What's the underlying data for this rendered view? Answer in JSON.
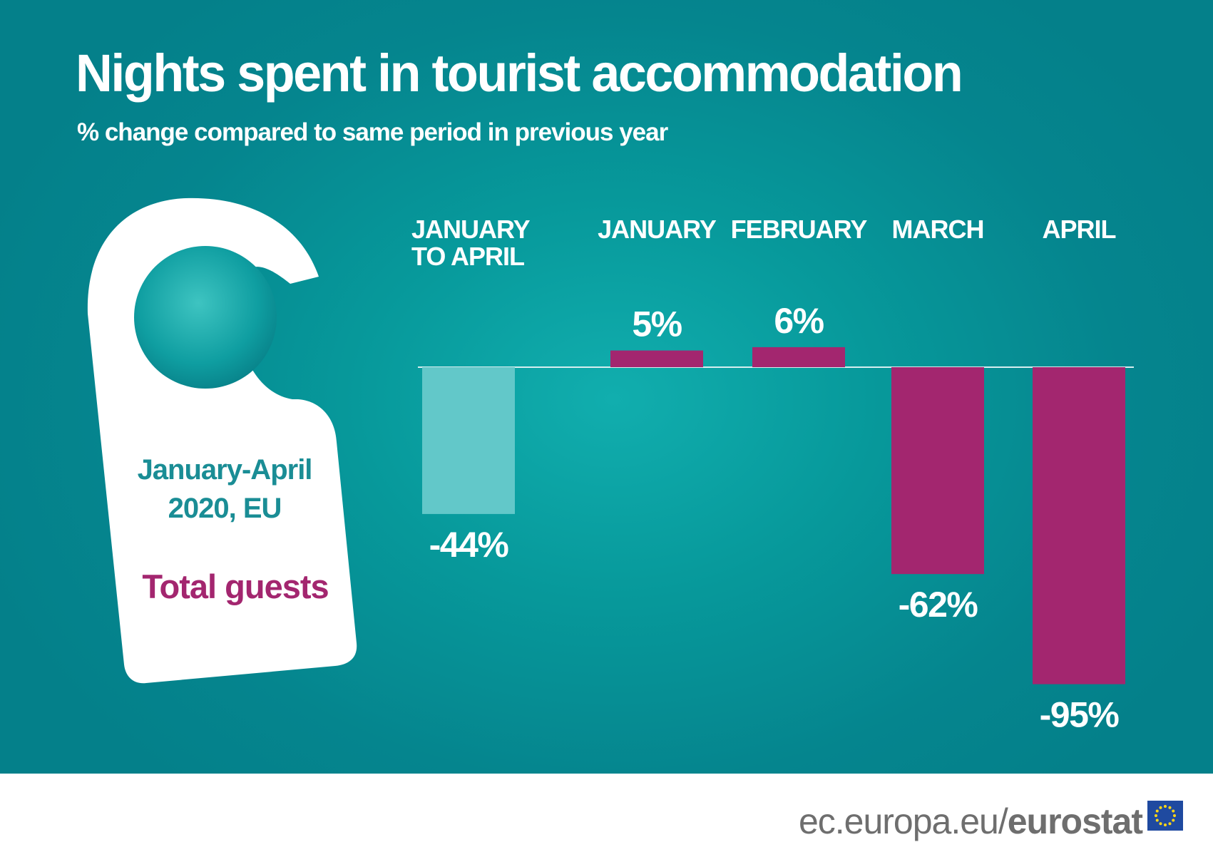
{
  "header": {
    "title": "Nights spent in tourist accommodation",
    "subtitle": "% change compared to same period in previous year"
  },
  "tag": {
    "period_line1": "January-April",
    "period_line2": "2020, EU",
    "measure": "Total guests"
  },
  "footer": {
    "url_prefix": "ec.europa.eu/",
    "url_brand": "eurostat",
    "logo_icon": "eu-flag-icon"
  },
  "colors": {
    "background": "#05858e",
    "highlight_bar": "#62c8c9",
    "bar": "#a3266f",
    "tag": "#ffffff",
    "tag_period_text": "#1a8d95",
    "tag_measure_text": "#a3266f"
  },
  "chart_data": {
    "type": "bar",
    "categories": [
      [
        "JANUARY",
        "TO APRIL"
      ],
      [
        "JANUARY"
      ],
      [
        "FEBRUARY"
      ],
      [
        "MARCH"
      ],
      [
        "APRIL"
      ]
    ],
    "values": [
      -44,
      5,
      6,
      -62,
      -95
    ],
    "value_labels": [
      "-44%",
      "5%",
      "6%",
      "-62%",
      "-95%"
    ],
    "highlight_index": 0,
    "ylim": [
      -95,
      6
    ],
    "title": "Nights spent in tourist accommodation",
    "subtitle": "% change compared to same period in previous year",
    "xlabel": "",
    "ylabel": "",
    "grid": false,
    "legend": "none",
    "value_axis_visible": false
  }
}
